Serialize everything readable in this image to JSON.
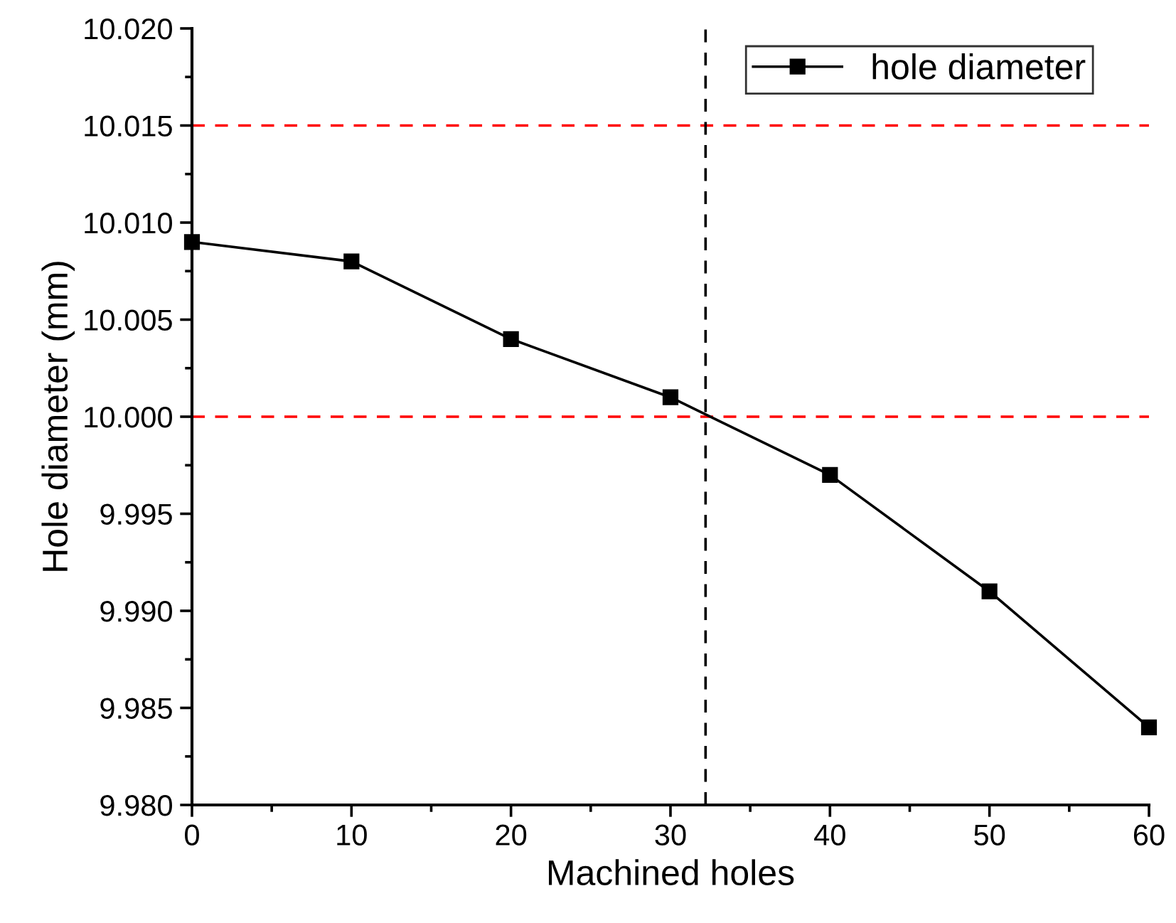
{
  "chart_data": {
    "type": "line",
    "xlabel": "Machined holes",
    "ylabel": "Hole diameter (mm)",
    "x": [
      0,
      10,
      20,
      30,
      40,
      50,
      60
    ],
    "series": [
      {
        "name": "hole diameter",
        "color": "#000000",
        "values": [
          10.009,
          10.008,
          10.004,
          10.001,
          9.997,
          9.991,
          9.984
        ]
      }
    ],
    "marker": "square",
    "line_style": "solid",
    "legend": "top right",
    "grid": false,
    "xlim": [
      0,
      60
    ],
    "xticks": [
      0,
      10,
      20,
      30,
      40,
      50,
      60
    ],
    "ylim": [
      9.98,
      10.02
    ],
    "yticks": [
      {
        "value": 9.98,
        "label": "9.980"
      },
      {
        "value": 9.985,
        "label": "9.985"
      },
      {
        "value": 9.99,
        "label": "9.990"
      },
      {
        "value": 9.995,
        "label": "9.995"
      },
      {
        "value": 10.0,
        "label": "10.000"
      },
      {
        "value": 10.005,
        "label": "10.005"
      },
      {
        "value": 10.01,
        "label": "10.010"
      },
      {
        "value": 10.015,
        "label": "10.015"
      },
      {
        "value": 10.02,
        "label": "10.020"
      }
    ],
    "ref_lines": [
      {
        "axis": "y",
        "value": 10.015,
        "color": "#ff0000",
        "line_style": "dashed"
      },
      {
        "axis": "y",
        "value": 10.0,
        "color": "#ff0000",
        "line_style": "dashed"
      },
      {
        "axis": "x",
        "value": 32.2,
        "color": "#000000",
        "line_style": "dashed"
      }
    ]
  }
}
